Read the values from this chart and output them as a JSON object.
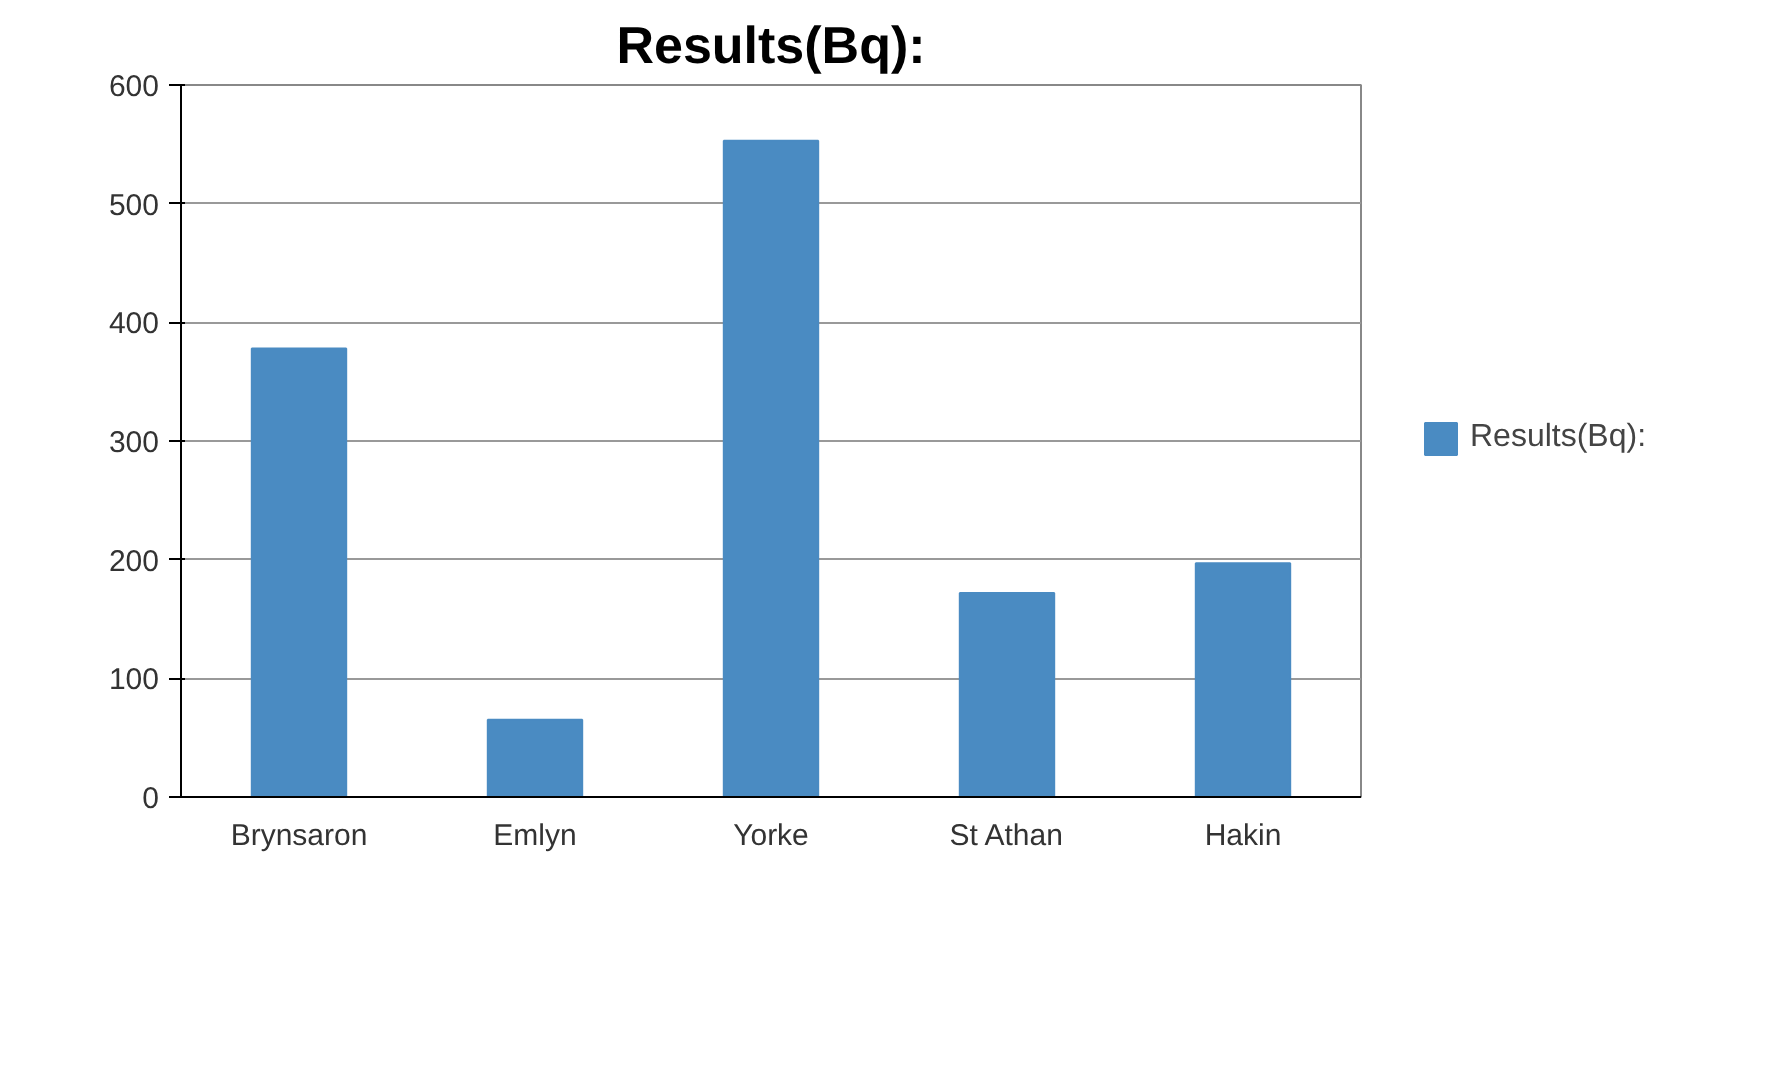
{
  "chart_data": {
    "type": "bar",
    "title": "Results(Bq):",
    "categories": [
      "Brynsaron",
      "Emlyn",
      "Yorke",
      "St Athan",
      "Hakin"
    ],
    "series": [
      {
        "name": "Results(Bq):",
        "color": "#4a8bc2",
        "values": [
          378,
          65,
          553,
          172,
          197
        ]
      }
    ],
    "ylim": [
      0,
      600
    ],
    "yticks": [
      0,
      100,
      200,
      300,
      400,
      500,
      600
    ],
    "grid": "y",
    "legend": "right"
  }
}
